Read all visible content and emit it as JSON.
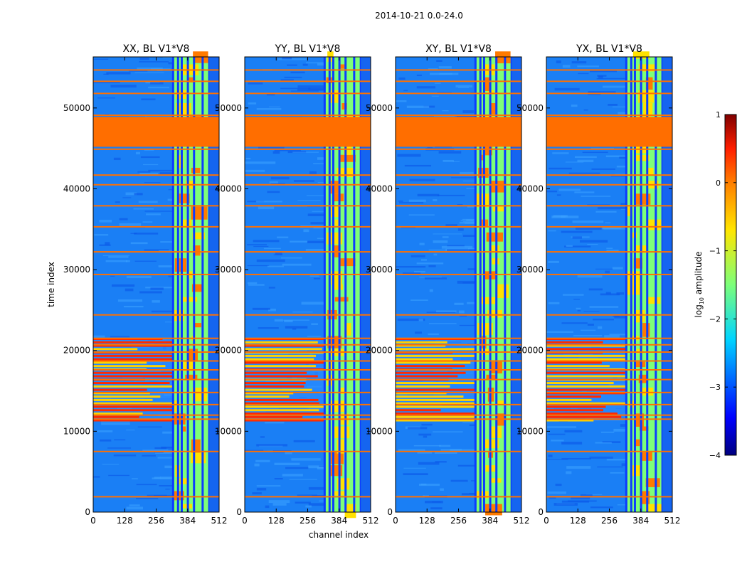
{
  "figure": {
    "suptitle": "2014-10-21 0.0-24.0"
  },
  "chart_data": {
    "type": "heatmap",
    "xlabel": "channel index",
    "ylabel": "time index",
    "xlim": [
      0,
      512
    ],
    "ylim": [
      0,
      56320
    ],
    "xticks": [
      0,
      128,
      256,
      384,
      512
    ],
    "yticks": [
      0,
      10000,
      20000,
      30000,
      40000,
      50000
    ],
    "panels": [
      {
        "title": "XX, BL V1*V8",
        "band_start": 325
      },
      {
        "title": "YY, BL V1*V8",
        "band_start": 322
      },
      {
        "title": "XY, BL V1*V8",
        "band_start": 325
      },
      {
        "title": "YX, BL V1*V8",
        "band_start": 325
      }
    ],
    "band_end": 472,
    "band_columns": [
      325,
      345,
      360,
      385,
      410,
      445,
      472
    ],
    "flagged_time_block": [
      45200,
      48900
    ],
    "flagged_rows": [
      1900,
      7500,
      11500,
      12000,
      13300,
      14800,
      16400,
      17600,
      18700,
      19800,
      20700,
      21500,
      24400,
      29400,
      32200,
      35300,
      37900,
      40500,
      41700,
      44900,
      49100,
      51800,
      53300,
      54700
    ],
    "bright_interval": [
      11300,
      21600
    ],
    "colorbar": {
      "label": "log10 amplitude",
      "ticks": [
        1,
        0,
        -1,
        -2,
        -3,
        -4
      ],
      "range": [
        -4,
        1
      ],
      "colormap": [
        "#00007f",
        "#0000ff",
        "#007fff",
        "#00ffff",
        "#7fff7f",
        "#ffff00",
        "#ff7f00",
        "#ff0000",
        "#7f0000"
      ]
    }
  }
}
